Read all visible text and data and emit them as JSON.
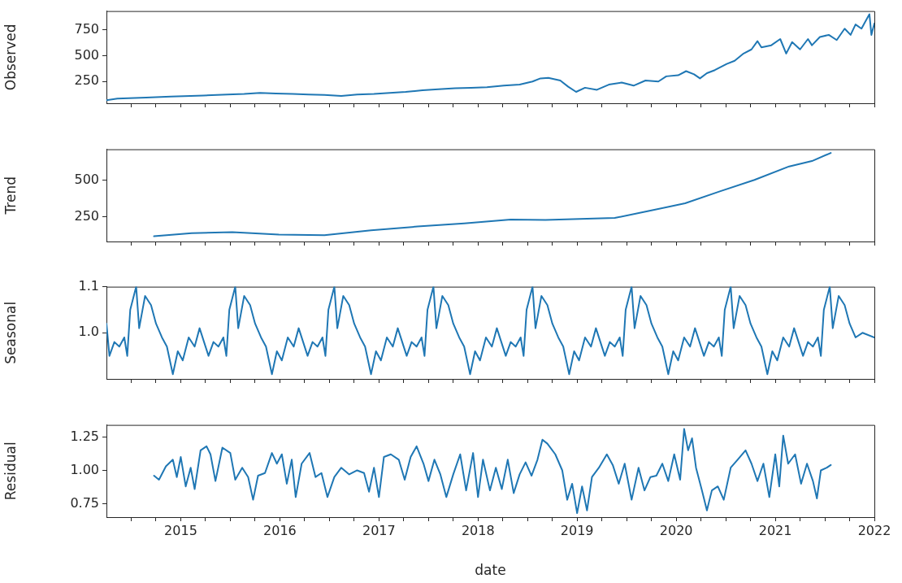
{
  "chart_data": [
    {
      "type": "line",
      "ylabel": "Observed",
      "xlim": [
        2014.25,
        2022
      ],
      "ylim": [
        40,
        930
      ],
      "yticks": [
        250,
        500,
        750
      ],
      "tick_labels": "y",
      "grid": false,
      "xticks": [
        {
          "value": 2014.5,
          "label": null
        },
        {
          "value": 2014.75,
          "label": null
        },
        2015,
        {
          "value": 2015.25,
          "label": null
        },
        {
          "value": 2015.5,
          "label": null
        },
        {
          "value": 2015.75,
          "label": null
        },
        2016,
        {
          "value": 2016.25,
          "label": null
        },
        {
          "value": 2016.5,
          "label": null
        },
        {
          "value": 2016.75,
          "label": null
        },
        2017,
        {
          "value": 2017.25,
          "label": null
        },
        {
          "value": 2017.5,
          "label": null
        },
        {
          "value": 2017.75,
          "label": null
        },
        2018,
        {
          "value": 2018.25,
          "label": null
        },
        {
          "value": 2018.5,
          "label": null
        },
        {
          "value": 2018.75,
          "label": null
        },
        2019,
        {
          "value": 2019.25,
          "label": null
        },
        {
          "value": 2019.5,
          "label": null
        },
        {
          "value": 2019.75,
          "label": null
        },
        2020,
        {
          "value": 2020.25,
          "label": null
        },
        {
          "value": 2020.5,
          "label": null
        },
        {
          "value": 2020.75,
          "label": null
        },
        2021,
        {
          "value": 2021.25,
          "label": null
        },
        {
          "value": 2021.5,
          "label": null
        },
        {
          "value": 2021.75,
          "label": null
        },
        2022
      ],
      "series": [
        {
          "color": "#1f77b4",
          "x": [
            2014.25,
            2014.36,
            2014.65,
            2014.9,
            2015.23,
            2015.47,
            2015.64,
            2015.8,
            2015.96,
            2016.13,
            2016.29,
            2016.45,
            2016.62,
            2016.78,
            2016.95,
            2017.11,
            2017.27,
            2017.44,
            2017.6,
            2017.77,
            2017.93,
            2018.09,
            2018.26,
            2018.42,
            2018.55,
            2018.63,
            2018.71,
            2018.83,
            2018.91,
            2018.99,
            2019.08,
            2019.2,
            2019.32,
            2019.45,
            2019.57,
            2019.69,
            2019.82,
            2019.9,
            2020.02,
            2020.1,
            2020.18,
            2020.24,
            2020.31,
            2020.39,
            2020.51,
            2020.59,
            2020.68,
            2020.76,
            2020.82,
            2020.86,
            2020.96,
            2021.05,
            2021.11,
            2021.17,
            2021.25,
            2021.33,
            2021.37,
            2021.45,
            2021.54,
            2021.62,
            2021.7,
            2021.76,
            2021.81,
            2021.87,
            2021.91,
            2021.95,
            2021.97,
            2022
          ],
          "values": [
            70,
            85,
            95,
            105,
            115,
            125,
            130,
            140,
            135,
            130,
            125,
            120,
            110,
            125,
            130,
            140,
            150,
            165,
            175,
            185,
            190,
            195,
            210,
            220,
            250,
            280,
            285,
            260,
            200,
            150,
            190,
            170,
            220,
            240,
            210,
            260,
            250,
            300,
            310,
            350,
            320,
            280,
            330,
            360,
            420,
            450,
            520,
            560,
            640,
            580,
            600,
            660,
            520,
            630,
            560,
            660,
            600,
            680,
            700,
            650,
            760,
            700,
            800,
            760,
            830,
            900,
            700,
            810
          ]
        }
      ]
    },
    {
      "type": "line",
      "ylabel": "Trend",
      "xlim": [
        2014.25,
        2022
      ],
      "ylim": [
        80,
        715
      ],
      "yticks": [
        250,
        500
      ],
      "tick_labels": "y",
      "grid": false,
      "xticks": [
        {
          "value": 2014.5,
          "label": null
        },
        {
          "value": 2014.75,
          "label": null
        },
        2015,
        {
          "value": 2015.25,
          "label": null
        },
        {
          "value": 2015.5,
          "label": null
        },
        {
          "value": 2015.75,
          "label": null
        },
        2016,
        {
          "value": 2016.25,
          "label": null
        },
        {
          "value": 2016.5,
          "label": null
        },
        {
          "value": 2016.75,
          "label": null
        },
        2017,
        {
          "value": 2017.25,
          "label": null
        },
        {
          "value": 2017.5,
          "label": null
        },
        {
          "value": 2017.75,
          "label": null
        },
        2018,
        {
          "value": 2018.25,
          "label": null
        },
        {
          "value": 2018.5,
          "label": null
        },
        {
          "value": 2018.75,
          "label": null
        },
        2019,
        {
          "value": 2019.25,
          "label": null
        },
        {
          "value": 2019.5,
          "label": null
        },
        {
          "value": 2019.75,
          "label": null
        },
        2020,
        {
          "value": 2020.25,
          "label": null
        },
        {
          "value": 2020.5,
          "label": null
        },
        {
          "value": 2020.75,
          "label": null
        },
        2021,
        {
          "value": 2021.25,
          "label": null
        },
        {
          "value": 2021.5,
          "label": null
        },
        {
          "value": 2021.75,
          "label": null
        },
        2022
      ],
      "series": [
        {
          "color": "#1f77b4",
          "x": [
            2014.73,
            2015.11,
            2015.52,
            2015.99,
            2016.45,
            2016.92,
            2017.39,
            2017.86,
            2018.33,
            2018.68,
            2019.03,
            2019.38,
            2019.73,
            2020.09,
            2020.44,
            2020.79,
            2021.14,
            2021.37,
            2021.56
          ],
          "values": [
            116,
            138,
            145,
            127,
            123,
            157,
            183,
            205,
            231,
            228,
            235,
            242,
            291,
            343,
            425,
            504,
            597,
            634,
            690
          ]
        }
      ]
    },
    {
      "type": "line",
      "ylabel": "Seasonal",
      "xlim": [
        2014.25,
        2022
      ],
      "ylim": [
        0.9,
        1.1
      ],
      "yticks": [
        {
          "value": 1,
          "label": "1.0"
        },
        1.1
      ],
      "tick_labels": "y",
      "grid": false,
      "xticks": [
        {
          "value": 2014.5,
          "label": null
        },
        {
          "value": 2014.75,
          "label": null
        },
        2015,
        {
          "value": 2015.25,
          "label": null
        },
        {
          "value": 2015.5,
          "label": null
        },
        {
          "value": 2015.75,
          "label": null
        },
        2016,
        {
          "value": 2016.25,
          "label": null
        },
        {
          "value": 2016.5,
          "label": null
        },
        {
          "value": 2016.75,
          "label": null
        },
        2017,
        {
          "value": 2017.25,
          "label": null
        },
        {
          "value": 2017.5,
          "label": null
        },
        {
          "value": 2017.75,
          "label": null
        },
        2018,
        {
          "value": 2018.25,
          "label": null
        },
        {
          "value": 2018.5,
          "label": null
        },
        {
          "value": 2018.75,
          "label": null
        },
        2019,
        {
          "value": 2019.25,
          "label": null
        },
        {
          "value": 2019.5,
          "label": null
        },
        {
          "value": 2019.75,
          "label": null
        },
        2020,
        {
          "value": 2020.25,
          "label": null
        },
        {
          "value": 2020.5,
          "label": null
        },
        {
          "value": 2020.75,
          "label": null
        },
        2021,
        {
          "value": 2021.25,
          "label": null
        },
        {
          "value": 2021.5,
          "label": null
        },
        {
          "value": 2021.75,
          "label": null
        },
        2022
      ],
      "series": [
        {
          "color": "#1f77b4",
          "x": [
            2014.25,
            2014.28,
            2014.33,
            2014.38,
            2014.43,
            2014.46,
            2014.49,
            2014.55,
            2014.58,
            2014.64,
            2014.7,
            2014.75,
            2014.81,
            2014.86,
            2014.92,
            2014.97,
            2015.02,
            2015.08,
            2015.14,
            2015.19,
            2015.28,
            2015.33,
            2015.38,
            2015.43,
            2015.46,
            2015.49,
            2015.55,
            2015.58,
            2015.64,
            2015.7,
            2015.75,
            2015.81,
            2015.86,
            2015.92,
            2015.97,
            2016.02,
            2016.08,
            2016.14,
            2016.19,
            2016.28,
            2016.33,
            2016.38,
            2016.43,
            2016.46,
            2016.49,
            2016.55,
            2016.58,
            2016.64,
            2016.7,
            2016.75,
            2016.81,
            2016.86,
            2016.92,
            2016.97,
            2017.02,
            2017.08,
            2017.14,
            2017.19,
            2017.28,
            2017.33,
            2017.38,
            2017.43,
            2017.46,
            2017.49,
            2017.55,
            2017.58,
            2017.64,
            2017.7,
            2017.75,
            2017.81,
            2017.86,
            2017.92,
            2017.97,
            2018.02,
            2018.08,
            2018.14,
            2018.19,
            2018.28,
            2018.33,
            2018.38,
            2018.43,
            2018.46,
            2018.49,
            2018.55,
            2018.58,
            2018.64,
            2018.7,
            2018.75,
            2018.81,
            2018.86,
            2018.92,
            2018.97,
            2019.02,
            2019.08,
            2019.14,
            2019.19,
            2019.28,
            2019.33,
            2019.38,
            2019.43,
            2019.46,
            2019.49,
            2019.55,
            2019.58,
            2019.64,
            2019.7,
            2019.75,
            2019.81,
            2019.86,
            2019.92,
            2019.97,
            2020.02,
            2020.08,
            2020.14,
            2020.19,
            2020.28,
            2020.33,
            2020.38,
            2020.43,
            2020.46,
            2020.49,
            2020.55,
            2020.58,
            2020.64,
            2020.7,
            2020.75,
            2020.81,
            2020.86,
            2020.92,
            2020.97,
            2021.02,
            2021.08,
            2021.14,
            2021.19,
            2021.28,
            2021.33,
            2021.38,
            2021.43,
            2021.46,
            2021.49,
            2021.55,
            2021.58,
            2021.64,
            2021.7,
            2021.75,
            2021.81,
            2021.88,
            2022
          ],
          "values": [
            1.02,
            0.95,
            0.98,
            0.97,
            0.99,
            0.95,
            1.05,
            1.1,
            1.01,
            1.08,
            1.06,
            1.02,
            0.99,
            0.97,
            0.91,
            0.96,
            0.94,
            0.99,
            0.97,
            1.01,
            0.95,
            0.98,
            0.97,
            0.99,
            0.95,
            1.05,
            1.1,
            1.01,
            1.08,
            1.06,
            1.02,
            0.99,
            0.97,
            0.91,
            0.96,
            0.94,
            0.99,
            0.97,
            1.01,
            0.95,
            0.98,
            0.97,
            0.99,
            0.95,
            1.05,
            1.1,
            1.01,
            1.08,
            1.06,
            1.02,
            0.99,
            0.97,
            0.91,
            0.96,
            0.94,
            0.99,
            0.97,
            1.01,
            0.95,
            0.98,
            0.97,
            0.99,
            0.95,
            1.05,
            1.1,
            1.01,
            1.08,
            1.06,
            1.02,
            0.99,
            0.97,
            0.91,
            0.96,
            0.94,
            0.99,
            0.97,
            1.01,
            0.95,
            0.98,
            0.97,
            0.99,
            0.95,
            1.05,
            1.1,
            1.01,
            1.08,
            1.06,
            1.02,
            0.99,
            0.97,
            0.91,
            0.96,
            0.94,
            0.99,
            0.97,
            1.01,
            0.95,
            0.98,
            0.97,
            0.99,
            0.95,
            1.05,
            1.1,
            1.01,
            1.08,
            1.06,
            1.02,
            0.99,
            0.97,
            0.91,
            0.96,
            0.94,
            0.99,
            0.97,
            1.01,
            0.95,
            0.98,
            0.97,
            0.99,
            0.95,
            1.05,
            1.1,
            1.01,
            1.08,
            1.06,
            1.02,
            0.99,
            0.97,
            0.91,
            0.96,
            0.94,
            0.99,
            0.97,
            1.01,
            0.95,
            0.98,
            0.97,
            0.99,
            0.95,
            1.05,
            1.1,
            1.01,
            1.08,
            1.06,
            1.02,
            0.99,
            1.0,
            0.99
          ]
        }
      ]
    },
    {
      "type": "line",
      "ylabel": "Residual",
      "xlabel": "date",
      "xlim": [
        2014.25,
        2022
      ],
      "ylim": [
        0.65,
        1.34
      ],
      "yticks": [
        0.75,
        {
          "value": 1,
          "label": "1.00"
        },
        1.25
      ],
      "grid": false,
      "xticks": [
        {
          "value": 2014.5,
          "label": null
        },
        {
          "value": 2014.75,
          "label": null
        },
        2015,
        {
          "value": 2015.25,
          "label": null
        },
        {
          "value": 2015.5,
          "label": null
        },
        {
          "value": 2015.75,
          "label": null
        },
        2016,
        {
          "value": 2016.25,
          "label": null
        },
        {
          "value": 2016.5,
          "label": null
        },
        {
          "value": 2016.75,
          "label": null
        },
        2017,
        {
          "value": 2017.25,
          "label": null
        },
        {
          "value": 2017.5,
          "label": null
        },
        {
          "value": 2017.75,
          "label": null
        },
        2018,
        {
          "value": 2018.25,
          "label": null
        },
        {
          "value": 2018.5,
          "label": null
        },
        {
          "value": 2018.75,
          "label": null
        },
        2019,
        {
          "value": 2019.25,
          "label": null
        },
        {
          "value": 2019.5,
          "label": null
        },
        {
          "value": 2019.75,
          "label": null
        },
        2020,
        {
          "value": 2020.25,
          "label": null
        },
        {
          "value": 2020.5,
          "label": null
        },
        {
          "value": 2020.75,
          "label": null
        },
        2021,
        {
          "value": 2021.25,
          "label": null
        },
        {
          "value": 2021.5,
          "label": null
        },
        {
          "value": 2021.75,
          "label": null
        },
        2022
      ],
      "series": [
        {
          "color": "#1f77b4",
          "x": [
            2014.73,
            2014.78,
            2014.85,
            2014.92,
            2014.96,
            2015.0,
            2015.05,
            2015.1,
            2015.14,
            2015.2,
            2015.26,
            2015.3,
            2015.35,
            2015.42,
            2015.5,
            2015.55,
            2015.62,
            2015.68,
            2015.73,
            2015.78,
            2015.85,
            2015.92,
            2015.97,
            2016.02,
            2016.07,
            2016.12,
            2016.16,
            2016.22,
            2016.3,
            2016.36,
            2016.42,
            2016.48,
            2016.55,
            2016.62,
            2016.7,
            2016.78,
            2016.85,
            2016.9,
            2016.95,
            2017.0,
            2017.05,
            2017.12,
            2017.2,
            2017.26,
            2017.32,
            2017.38,
            2017.45,
            2017.5,
            2017.56,
            2017.62,
            2017.68,
            2017.75,
            2017.82,
            2017.88,
            2017.95,
            2018.0,
            2018.05,
            2018.12,
            2018.18,
            2018.24,
            2018.3,
            2018.36,
            2018.42,
            2018.48,
            2018.54,
            2018.6,
            2018.65,
            2018.7,
            2018.78,
            2018.85,
            2018.9,
            2018.95,
            2019.0,
            2019.05,
            2019.1,
            2019.15,
            2019.22,
            2019.3,
            2019.36,
            2019.42,
            2019.48,
            2019.55,
            2019.62,
            2019.68,
            2019.74,
            2019.8,
            2019.86,
            2019.92,
            2019.98,
            2020.04,
            2020.08,
            2020.12,
            2020.16,
            2020.2,
            2020.26,
            2020.31,
            2020.36,
            2020.42,
            2020.48,
            2020.55,
            2020.62,
            2020.7,
            2020.76,
            2020.82,
            2020.88,
            2020.94,
            2021.0,
            2021.04,
            2021.08,
            2021.13,
            2021.2,
            2021.26,
            2021.32,
            2021.38,
            2021.42,
            2021.46,
            2021.52,
            2021.56
          ],
          "values": [
            0.96,
            0.93,
            1.03,
            1.08,
            0.95,
            1.1,
            0.88,
            1.02,
            0.86,
            1.15,
            1.18,
            1.12,
            0.92,
            1.17,
            1.13,
            0.93,
            1.02,
            0.95,
            0.78,
            0.96,
            0.98,
            1.13,
            1.05,
            1.12,
            0.9,
            1.08,
            0.8,
            1.05,
            1.13,
            0.95,
            0.98,
            0.8,
            0.95,
            1.02,
            0.97,
            1.0,
            0.98,
            0.84,
            1.02,
            0.8,
            1.1,
            1.12,
            1.08,
            0.93,
            1.1,
            1.18,
            1.05,
            0.92,
            1.08,
            0.97,
            0.8,
            0.97,
            1.12,
            0.85,
            1.13,
            0.8,
            1.08,
            0.85,
            1.02,
            0.86,
            1.08,
            0.83,
            0.97,
            1.06,
            0.96,
            1.08,
            1.23,
            1.2,
            1.12,
            1.0,
            0.78,
            0.9,
            0.68,
            0.88,
            0.7,
            0.95,
            1.02,
            1.12,
            1.04,
            0.9,
            1.05,
            0.78,
            1.02,
            0.85,
            0.95,
            0.96,
            1.05,
            0.92,
            1.12,
            0.93,
            1.31,
            1.15,
            1.24,
            1.02,
            0.85,
            0.7,
            0.85,
            0.88,
            0.78,
            1.02,
            1.08,
            1.15,
            1.05,
            0.92,
            1.05,
            0.8,
            1.12,
            0.88,
            1.26,
            1.05,
            1.12,
            0.9,
            1.05,
            0.92,
            0.79,
            1.0,
            1.02,
            1.04
          ]
        }
      ]
    }
  ]
}
